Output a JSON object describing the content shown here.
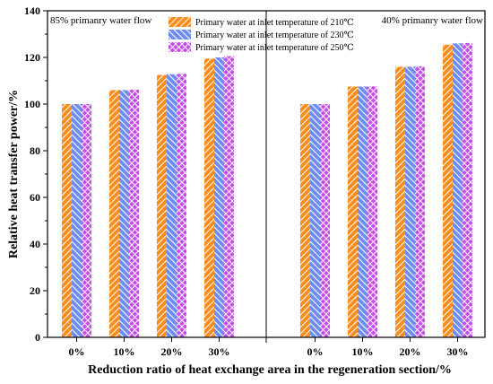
{
  "chart_data": {
    "type": "bar",
    "ylabel": "Relative heat transfer power/%",
    "xlabel": "Reduction ratio of heat exchange area in the regeneration section/%",
    "ylim": [
      0,
      140
    ],
    "yticks": [
      "0",
      "20",
      "40",
      "60",
      "80",
      "100",
      "120",
      "140"
    ],
    "groups": [
      {
        "annotation": "85% primanry water flow",
        "categories": [
          "0%",
          "10%",
          "20%",
          "30%"
        ]
      },
      {
        "annotation": "40% primanry water flow",
        "categories": [
          "0%",
          "10%",
          "20%",
          "30%"
        ]
      }
    ],
    "series": [
      {
        "name": "Primary water  at inlet temperature of 210℃",
        "color": "#ff8c1a",
        "values": [
          [
            100,
            106,
            112.5,
            119.5
          ],
          [
            100,
            107.5,
            116,
            125.5
          ]
        ]
      },
      {
        "name": "Primary water  at inlet temperature of 230℃",
        "color": "#6f8cf5",
        "values": [
          [
            100,
            106,
            112.8,
            120
          ],
          [
            100,
            107.5,
            116,
            126
          ]
        ]
      },
      {
        "name": "Primary water  at inlet temperature of 250℃",
        "color": "#c94ae8",
        "values": [
          [
            100,
            106.2,
            113,
            120.5
          ],
          [
            100,
            107.6,
            116.2,
            126.2
          ]
        ]
      }
    ],
    "legend_position": "top-center",
    "grid": false
  }
}
